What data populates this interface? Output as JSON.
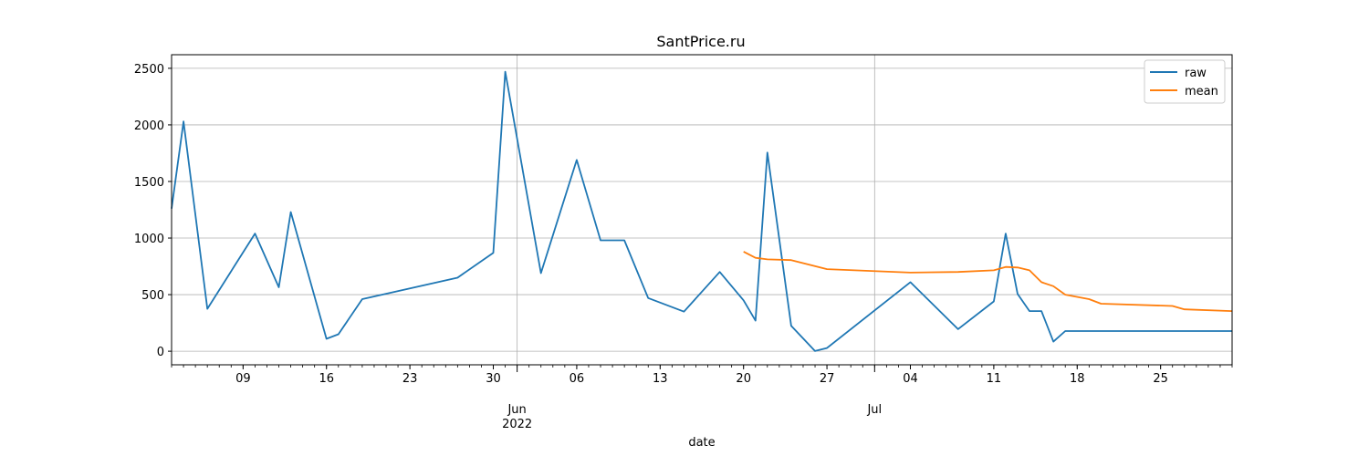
{
  "chart_data": {
    "type": "line",
    "title": "SantPrice.ru",
    "xlabel": "date",
    "ylabel": "",
    "x_range": [
      "2022-05-03",
      "2022-07-31"
    ],
    "ylim": [
      -120,
      2620
    ],
    "yticks": [
      0,
      500,
      1000,
      1500,
      2000,
      2500
    ],
    "xticks_minor_labels": [
      {
        "date": "2022-05-09",
        "label": "09"
      },
      {
        "date": "2022-05-16",
        "label": "16"
      },
      {
        "date": "2022-05-23",
        "label": "23"
      },
      {
        "date": "2022-05-30",
        "label": "30"
      },
      {
        "date": "2022-06-06",
        "label": "06"
      },
      {
        "date": "2022-06-13",
        "label": "13"
      },
      {
        "date": "2022-06-20",
        "label": "20"
      },
      {
        "date": "2022-06-27",
        "label": "27"
      },
      {
        "date": "2022-07-04",
        "label": "04"
      },
      {
        "date": "2022-07-11",
        "label": "11"
      },
      {
        "date": "2022-07-18",
        "label": "18"
      },
      {
        "date": "2022-07-25",
        "label": "25"
      }
    ],
    "xticks_major_labels": [
      {
        "date": "2022-06-01",
        "label": "Jun",
        "sublabel": "2022"
      },
      {
        "date": "2022-07-01",
        "label": "Jul",
        "sublabel": ""
      }
    ],
    "grid": true,
    "legend": "top-right",
    "series": [
      {
        "name": "raw",
        "color": "#1f77b4",
        "points": [
          [
            "2022-05-03",
            1260
          ],
          [
            "2022-05-04",
            2030
          ],
          [
            "2022-05-06",
            375
          ],
          [
            "2022-05-10",
            1040
          ],
          [
            "2022-05-12",
            565
          ],
          [
            "2022-05-13",
            1230
          ],
          [
            "2022-05-16",
            110
          ],
          [
            "2022-05-17",
            150
          ],
          [
            "2022-05-19",
            460
          ],
          [
            "2022-05-27",
            650
          ],
          [
            "2022-05-30",
            870
          ],
          [
            "2022-05-31",
            2470
          ],
          [
            "2022-06-03",
            690
          ],
          [
            "2022-06-06",
            1690
          ],
          [
            "2022-06-08",
            980
          ],
          [
            "2022-06-10",
            980
          ],
          [
            "2022-06-12",
            470
          ],
          [
            "2022-06-15",
            350
          ],
          [
            "2022-06-18",
            700
          ],
          [
            "2022-06-20",
            450
          ],
          [
            "2022-06-21",
            270
          ],
          [
            "2022-06-22",
            1755
          ],
          [
            "2022-06-24",
            225
          ],
          [
            "2022-06-26",
            2
          ],
          [
            "2022-06-27",
            28
          ],
          [
            "2022-07-04",
            610
          ],
          [
            "2022-07-08",
            195
          ],
          [
            "2022-07-11",
            440
          ],
          [
            "2022-07-12",
            1040
          ],
          [
            "2022-07-13",
            505
          ],
          [
            "2022-07-14",
            355
          ],
          [
            "2022-07-15",
            355
          ],
          [
            "2022-07-16",
            85
          ],
          [
            "2022-07-17",
            178
          ],
          [
            "2022-07-31",
            178
          ]
        ]
      },
      {
        "name": "mean",
        "color": "#ff7f0e",
        "points": [
          [
            "2022-06-20",
            880
          ],
          [
            "2022-06-21",
            825
          ],
          [
            "2022-06-22",
            812
          ],
          [
            "2022-06-24",
            805
          ],
          [
            "2022-06-27",
            725
          ],
          [
            "2022-07-04",
            695
          ],
          [
            "2022-07-08",
            700
          ],
          [
            "2022-07-11",
            715
          ],
          [
            "2022-07-12",
            745
          ],
          [
            "2022-07-13",
            740
          ],
          [
            "2022-07-14",
            715
          ],
          [
            "2022-07-15",
            610
          ],
          [
            "2022-07-16",
            575
          ],
          [
            "2022-07-17",
            500
          ],
          [
            "2022-07-19",
            460
          ],
          [
            "2022-07-20",
            420
          ],
          [
            "2022-07-26",
            400
          ],
          [
            "2022-07-27",
            370
          ],
          [
            "2022-07-31",
            355
          ]
        ]
      }
    ]
  }
}
